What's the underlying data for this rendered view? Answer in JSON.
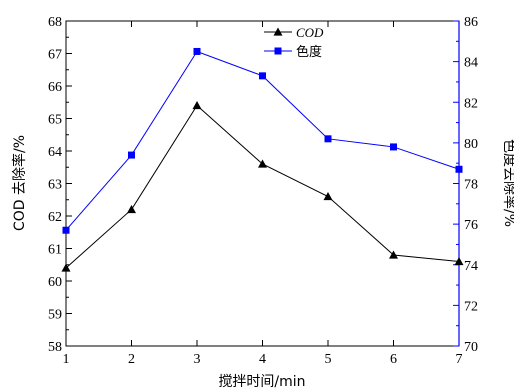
{
  "chart_data": {
    "type": "line",
    "x": [
      1,
      2,
      3,
      4,
      5,
      6,
      7
    ],
    "xlabel": "搅拌时间/min",
    "xlim": [
      1,
      7
    ],
    "xticks": [
      1,
      2,
      3,
      4,
      5,
      6,
      7
    ],
    "ylabel_left": "COD 去除率/%",
    "ylim_left": [
      58,
      68
    ],
    "yticks_left": [
      58,
      59,
      60,
      61,
      62,
      63,
      64,
      65,
      66,
      67,
      68
    ],
    "ylabel_right": "色度去除率/%",
    "ylim_right": [
      70,
      86
    ],
    "yticks_right": [
      70,
      72,
      74,
      76,
      78,
      80,
      82,
      84,
      86
    ],
    "series": [
      {
        "name": "COD",
        "axis": "left",
        "marker": "triangle",
        "color": "#000000",
        "values": [
          60.4,
          62.2,
          65.4,
          63.6,
          62.6,
          60.8,
          60.6
        ]
      },
      {
        "name": "色度",
        "axis": "right",
        "marker": "square",
        "color": "#0000ff",
        "values": [
          75.7,
          79.4,
          84.5,
          83.3,
          80.2,
          79.8,
          78.7
        ]
      }
    ],
    "legend": "top-center",
    "grid": false
  }
}
